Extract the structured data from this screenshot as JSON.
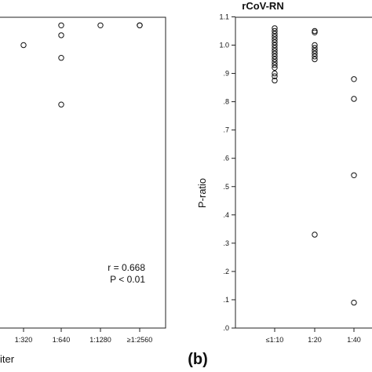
{
  "chart_data": [
    {
      "panel": "left",
      "type": "scatter",
      "title": "",
      "xlabel": "iter",
      "ylabel": "",
      "categories": [
        "1:320",
        "1:640",
        "1:1280",
        "≥1:2560"
      ],
      "points": [
        {
          "x": "1:320",
          "y": 1.0
        },
        {
          "x": "1:640",
          "y": 1.07
        },
        {
          "x": "1:640",
          "y": 1.035
        },
        {
          "x": "1:640",
          "y": 0.955
        },
        {
          "x": "1:640",
          "y": 0.79
        },
        {
          "x": "1:1280",
          "y": 1.07
        },
        {
          "x": "≥1:2560",
          "y": 1.07
        },
        {
          "x": "≥1:2560",
          "y": 1.07
        }
      ],
      "annotations": [
        "r = 0.668",
        "P < 0.01"
      ],
      "grid": false
    },
    {
      "panel": "right",
      "type": "scatter",
      "title": "rCoV-RN",
      "xlabel": "",
      "ylabel": "P-ratio",
      "categories": [
        "≤1:10",
        "1:20",
        "1:40"
      ],
      "ylim": [
        0,
        1.1
      ],
      "yticks": [
        ".0",
        ".1",
        ".2",
        ".3",
        ".4",
        ".5",
        ".6",
        ".7",
        ".8",
        ".9",
        "1.0",
        "1.1"
      ],
      "points": [
        {
          "x": "≤1:10",
          "y": 1.06
        },
        {
          "x": "≤1:10",
          "y": 1.05
        },
        {
          "x": "≤1:10",
          "y": 1.04
        },
        {
          "x": "≤1:10",
          "y": 1.03
        },
        {
          "x": "≤1:10",
          "y": 1.02
        },
        {
          "x": "≤1:10",
          "y": 1.01
        },
        {
          "x": "≤1:10",
          "y": 1.0
        },
        {
          "x": "≤1:10",
          "y": 0.99
        },
        {
          "x": "≤1:10",
          "y": 0.98
        },
        {
          "x": "≤1:10",
          "y": 0.97
        },
        {
          "x": "≤1:10",
          "y": 0.96
        },
        {
          "x": "≤1:10",
          "y": 0.95
        },
        {
          "x": "≤1:10",
          "y": 0.94
        },
        {
          "x": "≤1:10",
          "y": 0.93
        },
        {
          "x": "≤1:10",
          "y": 0.92
        },
        {
          "x": "≤1:10",
          "y": 0.9
        },
        {
          "x": "≤1:10",
          "y": 0.89
        },
        {
          "x": "≤1:10",
          "y": 0.875
        },
        {
          "x": "1:20",
          "y": 1.05
        },
        {
          "x": "1:20",
          "y": 1.045
        },
        {
          "x": "1:20",
          "y": 1.0
        },
        {
          "x": "1:20",
          "y": 0.99
        },
        {
          "x": "1:20",
          "y": 0.98
        },
        {
          "x": "1:20",
          "y": 0.97
        },
        {
          "x": "1:20",
          "y": 0.96
        },
        {
          "x": "1:20",
          "y": 0.95
        },
        {
          "x": "1:20",
          "y": 0.33
        },
        {
          "x": "1:40",
          "y": 0.88
        },
        {
          "x": "1:40",
          "y": 0.81
        },
        {
          "x": "1:40",
          "y": 0.54
        },
        {
          "x": "1:40",
          "y": 0.09
        }
      ],
      "grid": false
    }
  ],
  "panel_label": "(b)"
}
